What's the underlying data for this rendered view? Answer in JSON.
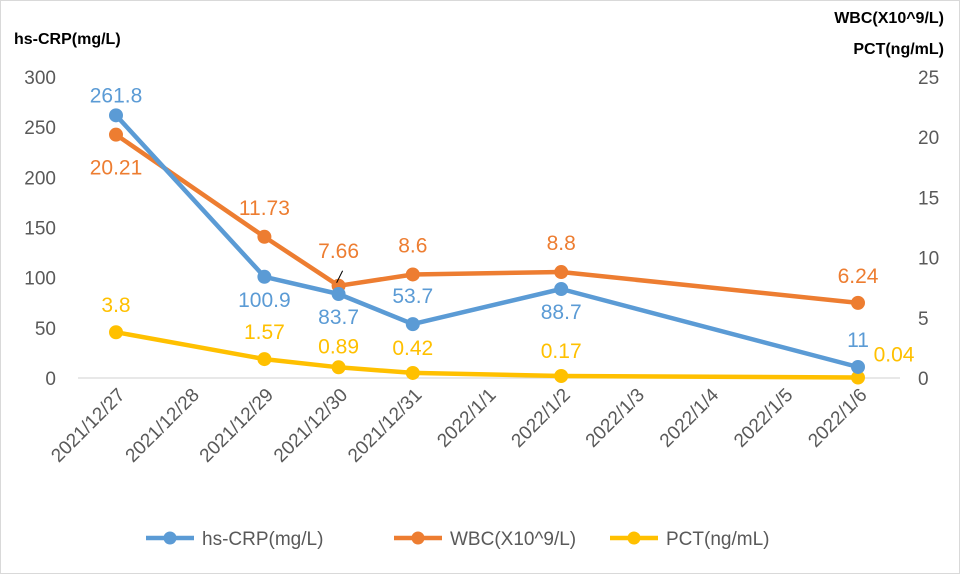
{
  "chart_data": {
    "type": "line",
    "categories": [
      "2021/12/27",
      "2021/12/28",
      "2021/12/29",
      "2021/12/30",
      "2021/12/31",
      "2022/1/1",
      "2022/1/2",
      "2022/1/3",
      "2022/1/4",
      "2022/1/5",
      "2022/1/6"
    ],
    "y_left": {
      "label": "hs-CRP(mg/L)",
      "range": [
        0,
        300
      ],
      "ticks": [
        "0",
        "50",
        "100",
        "150",
        "200",
        "250",
        "300"
      ]
    },
    "y_right": {
      "label_lines": [
        "WBC(X10^9/L)",
        "PCT(ng/mL)"
      ],
      "range": [
        0,
        25
      ],
      "ticks": [
        "0",
        "5",
        "10",
        "15",
        "20",
        "25"
      ]
    },
    "series": [
      {
        "name": "hs-CRP(mg/L)",
        "color": "#5b9bd5",
        "axis": "left",
        "points": [
          {
            "x": "2021/12/27",
            "y": 261.8,
            "label": "261.8"
          },
          {
            "x": "2021/12/29",
            "y": 100.9,
            "label": "100.9"
          },
          {
            "x": "2021/12/30",
            "y": 83.7,
            "label": "83.7"
          },
          {
            "x": "2021/12/31",
            "y": 53.7,
            "label": "53.7"
          },
          {
            "x": "2022/1/2",
            "y": 88.7,
            "label": "88.7"
          },
          {
            "x": "2022/1/6",
            "y": 11,
            "label": "11"
          }
        ]
      },
      {
        "name": "WBC(X10^9/L)",
        "color": "#ed7d31",
        "axis": "right",
        "points": [
          {
            "x": "2021/12/27",
            "y": 20.21,
            "label": "20.21"
          },
          {
            "x": "2021/12/29",
            "y": 11.73,
            "label": "11.73"
          },
          {
            "x": "2021/12/30",
            "y": 7.66,
            "label": "7.66"
          },
          {
            "x": "2021/12/31",
            "y": 8.6,
            "label": "8.6"
          },
          {
            "x": "2022/1/2",
            "y": 8.8,
            "label": "8.8"
          },
          {
            "x": "2022/1/6",
            "y": 6.24,
            "label": "6.24"
          }
        ]
      },
      {
        "name": "PCT(ng/mL)",
        "color": "#ffc000",
        "axis": "right",
        "points": [
          {
            "x": "2021/12/27",
            "y": 3.8,
            "label": "3.8"
          },
          {
            "x": "2021/12/29",
            "y": 1.57,
            "label": "1.57"
          },
          {
            "x": "2021/12/30",
            "y": 0.89,
            "label": "0.89"
          },
          {
            "x": "2021/12/31",
            "y": 0.42,
            "label": "0.42"
          },
          {
            "x": "2022/1/2",
            "y": 0.17,
            "label": "0.17"
          },
          {
            "x": "2022/1/6",
            "y": 0.04,
            "label": "0.04"
          }
        ]
      }
    ],
    "grid": false,
    "legend": "bottom"
  }
}
